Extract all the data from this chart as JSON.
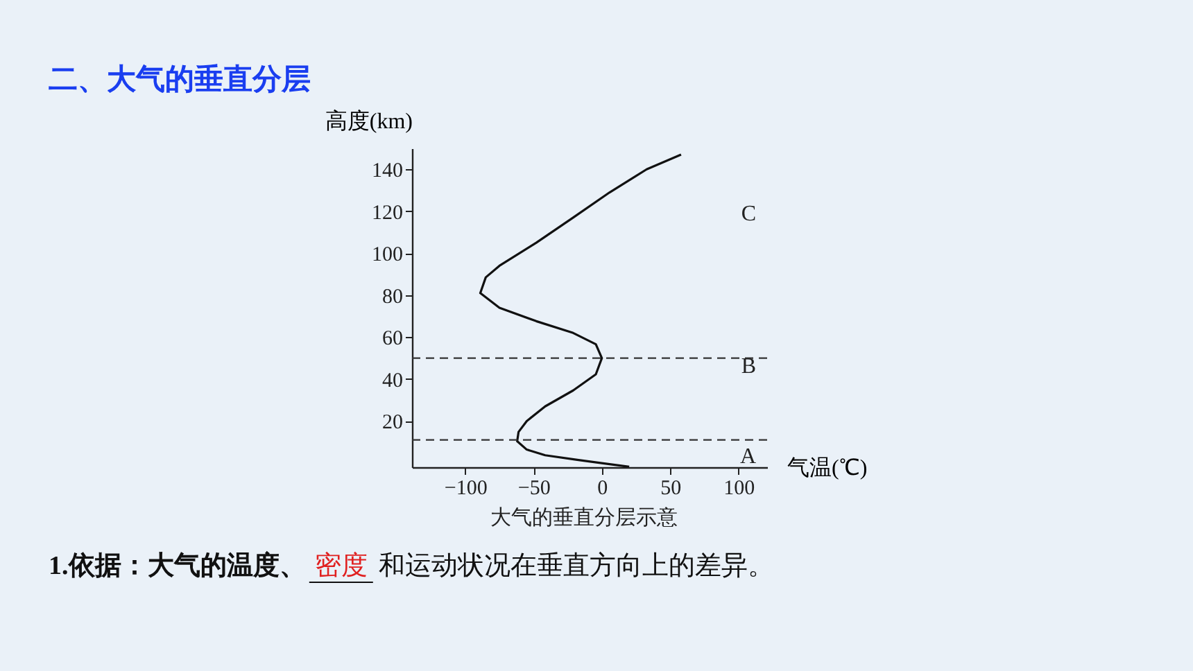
{
  "chart_data": {
    "type": "line",
    "title": "二、大气的垂直分层",
    "xlabel": "气温(℃)",
    "ylabel": "高度(km)",
    "x": [
      20,
      -1,
      -18,
      -41.5,
      -55,
      -62,
      -61,
      -55,
      -41.5,
      -21,
      -4.4,
      0,
      -4.4,
      -21,
      -48,
      -75,
      -89,
      -85,
      -75,
      -48,
      -21,
      5.7,
      32.8,
      58
    ],
    "series": [
      {
        "color": "#111111",
        "values": [
          -1.8,
          0,
          1.5,
          3.7,
          6.4,
          10.4,
          14.8,
          20,
          27,
          34.6,
          42.3,
          50,
          56.6,
          62,
          67.6,
          74,
          81,
          88.5,
          94,
          105,
          117,
          129,
          140,
          147
        ]
      }
    ],
    "xlim": [
      -139,
      121
    ],
    "ylim": [
      -2,
      150
    ],
    "xticks": [
      -100,
      -50,
      0,
      50,
      100
    ],
    "yticks": [
      20,
      40,
      60,
      80,
      100,
      120,
      140
    ],
    "grid": false,
    "marker": "none",
    "line_style": "solid",
    "ref_lines": [
      {
        "axis": "y",
        "value": 11,
        "line_style": "dashed",
        "color": "#333333"
      },
      {
        "axis": "y",
        "value": 50,
        "line_style": "dashed",
        "color": "#333333"
      }
    ],
    "annotations": [
      "A",
      "B",
      "C",
      "大气的垂直分层示意",
      "1.依据：大气的温度、",
      "密度",
      "和运动状况在垂直方向上的差异。"
    ]
  }
}
